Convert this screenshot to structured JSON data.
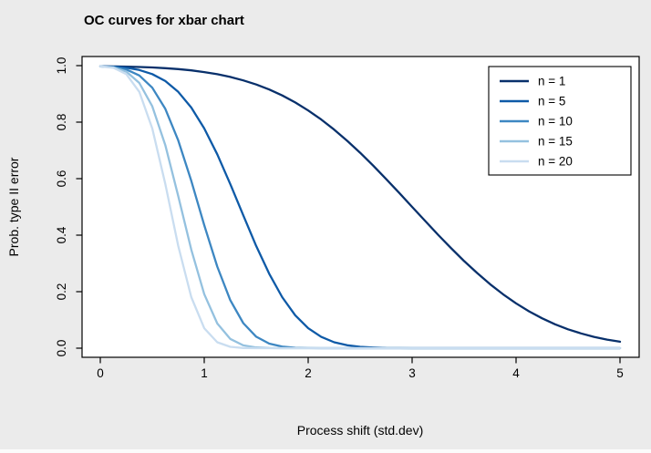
{
  "window": {
    "background": "#ebebeb",
    "panel_background": "#ffffff"
  },
  "chart_data": {
    "type": "line",
    "title": "OC curves for xbar chart",
    "xlabel": "Process shift (std.dev)",
    "ylabel": "Prob. type II error",
    "xlim": [
      0,
      5
    ],
    "ylim": [
      0,
      1
    ],
    "xticks": [
      0,
      1,
      2,
      3,
      4,
      5
    ],
    "yticks": [
      "0.0",
      "0.2",
      "0.4",
      "0.6",
      "0.8",
      "1.0"
    ],
    "grid": false,
    "legend": {
      "position": "top-right",
      "border": true
    },
    "x": [
      0,
      0.125,
      0.25,
      0.375,
      0.5,
      0.625,
      0.75,
      0.875,
      1,
      1.125,
      1.25,
      1.375,
      1.5,
      1.625,
      1.75,
      1.875,
      2,
      2.125,
      2.25,
      2.375,
      2.5,
      2.625,
      2.75,
      2.875,
      3,
      3.125,
      3.25,
      3.375,
      3.5,
      3.625,
      3.75,
      3.875,
      4,
      4.125,
      4.25,
      4.375,
      4.5,
      4.625,
      4.75,
      4.875,
      5
    ],
    "series": [
      {
        "name": "n = 1",
        "color": "#08306B",
        "values": [
          0.9973,
          0.9971,
          0.9964,
          0.9953,
          0.9936,
          0.9911,
          0.9877,
          0.9832,
          0.9772,
          0.9696,
          0.9599,
          0.9479,
          0.9332,
          0.9154,
          0.8944,
          0.8697,
          0.8413,
          0.8092,
          0.7734,
          0.734,
          0.6915,
          0.6462,
          0.5987,
          0.5497,
          0.5,
          0.4503,
          0.4013,
          0.3538,
          0.3085,
          0.266,
          0.2266,
          0.1908,
          0.1587,
          0.1303,
          0.1057,
          0.0846,
          0.0668,
          0.0521,
          0.0401,
          0.0304,
          0.0228
        ]
      },
      {
        "name": "n = 5",
        "color": "#0E5AA7",
        "values": [
          0.9973,
          0.9962,
          0.9925,
          0.9846,
          0.9701,
          0.9455,
          0.9071,
          0.8516,
          0.7776,
          0.686,
          0.5812,
          0.4703,
          0.3616,
          0.2632,
          0.1806,
          0.1165,
          0.0705,
          0.0399,
          0.0211,
          0.0104,
          0.0048,
          0.0021,
          0.0008,
          0.0003,
          0.0001,
          0,
          0,
          0,
          0,
          0,
          0,
          0,
          0,
          0,
          0,
          0,
          0,
          0,
          0,
          0,
          0
        ]
      },
      {
        "name": "n = 10",
        "color": "#3D87C2",
        "values": [
          0.9973,
          0.9951,
          0.9864,
          0.9652,
          0.922,
          0.847,
          0.7351,
          0.5921,
          0.4355,
          0.2886,
          0.1704,
          0.0888,
          0.0406,
          0.0162,
          0.0056,
          0.0017,
          0.0004,
          0.0001,
          0,
          0,
          0,
          0,
          0,
          0,
          0,
          0,
          0,
          0,
          0,
          0,
          0,
          0,
          0,
          0,
          0,
          0,
          0,
          0,
          0,
          0,
          0
        ]
      },
      {
        "name": "n = 15",
        "color": "#94C1DF",
        "values": [
          0.9973,
          0.9938,
          0.9789,
          0.9388,
          0.8562,
          0.7188,
          0.538,
          0.3487,
          0.1913,
          0.0874,
          0.0328,
          0.01,
          0.0025,
          0.0005,
          0.0001,
          0,
          0,
          0,
          0,
          0,
          0,
          0,
          0,
          0,
          0,
          0,
          0,
          0,
          0,
          0,
          0,
          0,
          0,
          0,
          0,
          0,
          0,
          0,
          0,
          0,
          0
        ]
      },
      {
        "name": "n = 20",
        "color": "#C9DDF0",
        "values": [
          0.9973,
          0.9925,
          0.9701,
          0.9071,
          0.7776,
          0.5812,
          0.3616,
          0.1806,
          0.0705,
          0.0211,
          0.0048,
          0.0008,
          0.0001,
          0,
          0,
          0,
          0,
          0,
          0,
          0,
          0,
          0,
          0,
          0,
          0,
          0,
          0,
          0,
          0,
          0,
          0,
          0,
          0,
          0,
          0,
          0,
          0,
          0,
          0,
          0,
          0
        ]
      }
    ]
  }
}
